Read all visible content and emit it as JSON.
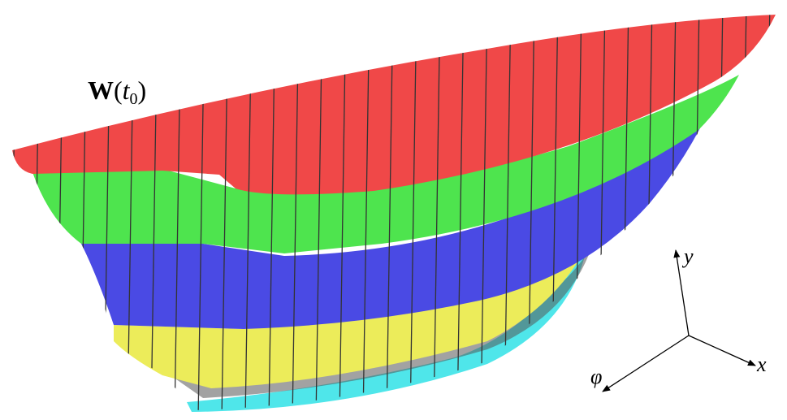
{
  "label": {
    "parts": [
      "W",
      "(",
      "t",
      "0",
      ")"
    ]
  },
  "axes": {
    "y": "y",
    "x": "x",
    "phi": "φ"
  }
}
